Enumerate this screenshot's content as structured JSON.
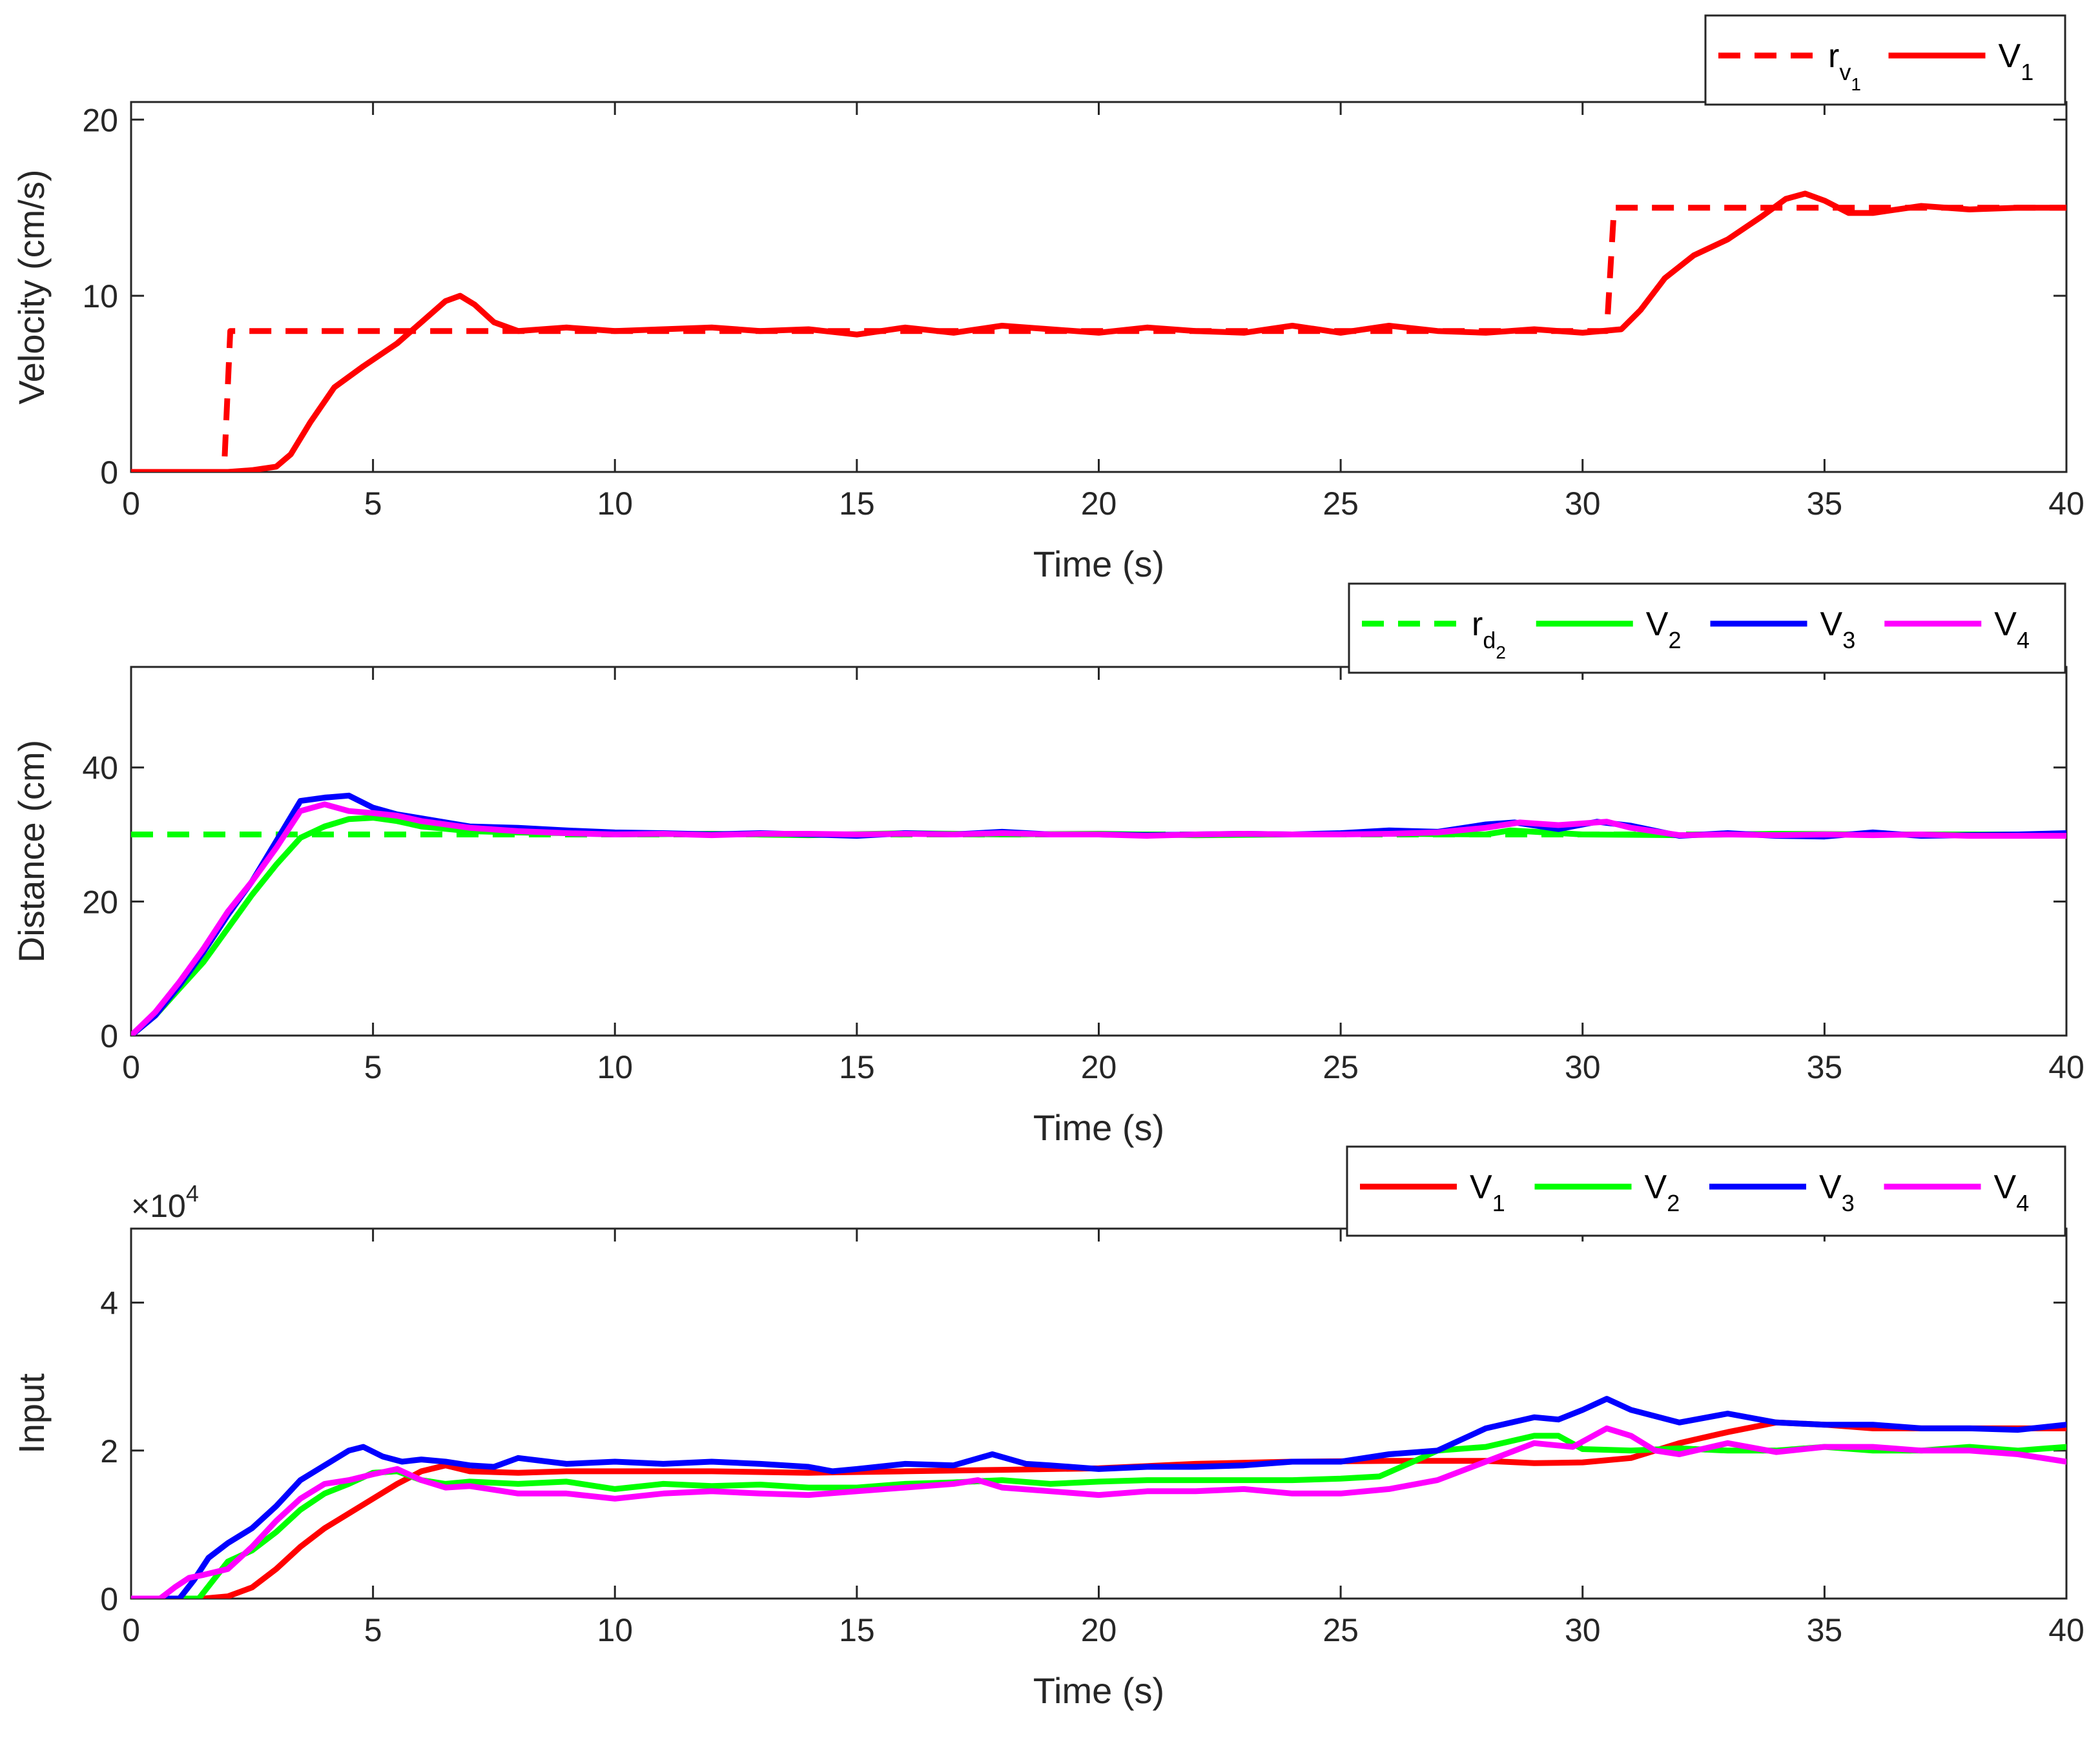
{
  "chart_data": [
    {
      "type": "line",
      "xlabel": "Time (s)",
      "ylabel": "Velocity (cm/s)",
      "xlim": [
        0,
        40
      ],
      "ylim": [
        0,
        21
      ],
      "xticks": [
        0,
        5,
        10,
        15,
        20,
        25,
        30,
        35,
        40
      ],
      "xtick_labels": [
        "0",
        "5",
        "10",
        "15",
        "20",
        "25",
        "30",
        "35",
        "40"
      ],
      "yticks": [
        0,
        10,
        20
      ],
      "ytick_labels": [
        "0",
        "10",
        "20"
      ],
      "legend_position": "top-right",
      "series": [
        {
          "name": "r_{v_1}",
          "label_main": "r",
          "label_sub": "v",
          "label_subsub": "1",
          "color": "#ff0000",
          "style": "dashed",
          "x": [
            0,
            1.92,
            2.05,
            30.5,
            30.65,
            40
          ],
          "y": [
            0,
            0,
            8,
            8,
            15,
            15
          ]
        },
        {
          "name": "V_1",
          "label_main": "V",
          "label_sub": "1",
          "color": "#ff0000",
          "style": "solid",
          "x": [
            0,
            2.0,
            2.5,
            3.0,
            3.3,
            3.7,
            4.2,
            4.8,
            5.5,
            6.0,
            6.5,
            6.8,
            7.1,
            7.5,
            8.0,
            9,
            10,
            11,
            12,
            13,
            14,
            15,
            16,
            17,
            18,
            19,
            20,
            21,
            22,
            23,
            24,
            25,
            26,
            27,
            28,
            29,
            30,
            30.8,
            31.2,
            31.7,
            32.3,
            33.0,
            33.7,
            34.2,
            34.6,
            35.0,
            35.5,
            36,
            37,
            38,
            39,
            40
          ],
          "y": [
            0,
            0,
            0.1,
            0.3,
            1.0,
            2.8,
            4.8,
            6.0,
            7.3,
            8.5,
            9.7,
            10.0,
            9.5,
            8.5,
            8.0,
            8.2,
            8.0,
            8.1,
            8.2,
            8.0,
            8.1,
            7.8,
            8.2,
            7.9,
            8.3,
            8.1,
            7.9,
            8.2,
            8.0,
            7.9,
            8.3,
            7.9,
            8.3,
            8.0,
            7.9,
            8.1,
            7.9,
            8.1,
            9.2,
            11.0,
            12.3,
            13.2,
            14.5,
            15.5,
            15.8,
            15.4,
            14.7,
            14.7,
            15.1,
            14.9,
            15.0,
            15.0
          ]
        }
      ]
    },
    {
      "type": "line",
      "xlabel": "Time (s)",
      "ylabel": "Distance (cm)",
      "xlim": [
        0,
        40
      ],
      "ylim": [
        0,
        55
      ],
      "xticks": [
        0,
        5,
        10,
        15,
        20,
        25,
        30,
        35,
        40
      ],
      "xtick_labels": [
        "0",
        "5",
        "10",
        "15",
        "20",
        "25",
        "30",
        "35",
        "40"
      ],
      "yticks": [
        0,
        20,
        40
      ],
      "ytick_labels": [
        "0",
        "20",
        "40"
      ],
      "legend_position": "top-right",
      "series": [
        {
          "name": "r_{d_2}",
          "label_main": "r",
          "label_sub": "d",
          "label_subsub": "2",
          "color": "#00ff00",
          "style": "dashed",
          "x": [
            0,
            40
          ],
          "y": [
            30,
            30
          ]
        },
        {
          "name": "V_2",
          "label_main": "V",
          "label_sub": "2",
          "color": "#00ff00",
          "style": "solid",
          "x": [
            0,
            0.5,
            1,
            1.5,
            2,
            2.5,
            3,
            3.5,
            4,
            4.5,
            5,
            5.5,
            6,
            7,
            8,
            9,
            10,
            12,
            14,
            16,
            18,
            20,
            22,
            24,
            26,
            28,
            28.5,
            30,
            32,
            34,
            36,
            38,
            40
          ],
          "y": [
            0,
            3,
            7,
            11,
            16,
            21,
            25.5,
            29.5,
            31.2,
            32.3,
            32.5,
            32.0,
            31.2,
            30.5,
            30.3,
            30.2,
            30.0,
            30.1,
            29.9,
            30.2,
            30.0,
            30.1,
            29.9,
            30.0,
            30.1,
            30.0,
            30.6,
            30.0,
            29.9,
            30.1,
            30.0,
            30.0,
            30.0
          ]
        },
        {
          "name": "V_3",
          "label_main": "V",
          "label_sub": "3",
          "color": "#0000ff",
          "style": "solid",
          "x": [
            0,
            0.5,
            1,
            1.5,
            2,
            2.5,
            3,
            3.5,
            4,
            4.5,
            5,
            5.5,
            6,
            7,
            8,
            9,
            10,
            11,
            12,
            13,
            14,
            15,
            16,
            17,
            18,
            19,
            20,
            21,
            22,
            23,
            24,
            25,
            26,
            27,
            28,
            28.6,
            29.5,
            30.3,
            31,
            32,
            33,
            34,
            35,
            36,
            37,
            38,
            39,
            40
          ],
          "y": [
            0,
            3,
            7.5,
            12.5,
            18,
            23,
            29,
            35,
            35.5,
            35.8,
            34.0,
            33.0,
            32.4,
            31.2,
            31.0,
            30.6,
            30.3,
            30.2,
            30.0,
            30.2,
            30.0,
            29.8,
            30.2,
            30.0,
            30.4,
            30.0,
            30.0,
            29.9,
            30.0,
            30.1,
            30.0,
            30.2,
            30.6,
            30.4,
            31.5,
            31.8,
            30.8,
            31.9,
            31.3,
            29.8,
            30.2,
            29.8,
            29.7,
            30.3,
            29.8,
            29.9,
            30.0,
            30.2
          ]
        },
        {
          "name": "V_4",
          "label_main": "V",
          "label_sub": "4",
          "color": "#ff00ff",
          "style": "solid",
          "x": [
            0,
            0.5,
            1,
            1.5,
            2,
            2.5,
            3,
            3.5,
            4,
            4.5,
            5,
            5.5,
            6,
            7,
            8,
            9,
            10,
            11,
            12,
            13,
            14,
            15,
            16,
            17,
            18,
            19,
            20,
            21,
            22,
            23,
            24,
            25,
            26,
            27,
            28,
            28.7,
            29.5,
            30.5,
            31,
            32,
            33,
            34,
            35,
            36,
            37,
            38,
            39,
            40
          ],
          "y": [
            0,
            3.5,
            8,
            13,
            18.5,
            23,
            28,
            33.5,
            34.5,
            33.5,
            33.2,
            32.8,
            32.0,
            31.0,
            30.5,
            30.2,
            30.0,
            30.1,
            29.9,
            30.1,
            30.1,
            30.0,
            30.1,
            30.0,
            30.2,
            30.0,
            30.0,
            29.8,
            30.0,
            30.1,
            30.0,
            30.0,
            30.1,
            30.3,
            31.0,
            31.8,
            31.4,
            31.9,
            31.0,
            29.9,
            30.0,
            29.9,
            30.0,
            29.9,
            30.0,
            29.8,
            29.8,
            29.8
          ]
        }
      ]
    },
    {
      "type": "line",
      "xlabel": "Time (s)",
      "ylabel": "Input",
      "exponent_label": "×10",
      "exponent_power": "4",
      "xlim": [
        0,
        40
      ],
      "ylim": [
        0,
        5
      ],
      "xticks": [
        0,
        5,
        10,
        15,
        20,
        25,
        30,
        35,
        40
      ],
      "xtick_labels": [
        "0",
        "5",
        "10",
        "15",
        "20",
        "25",
        "30",
        "35",
        "40"
      ],
      "yticks": [
        0,
        2,
        4
      ],
      "ytick_labels": [
        "0",
        "2",
        "4"
      ],
      "legend_position": "top-right",
      "series": [
        {
          "name": "V_1",
          "label_main": "V",
          "label_sub": "1",
          "color": "#ff0000",
          "style": "solid",
          "x": [
            0,
            1.5,
            2,
            2.5,
            3,
            3.5,
            4,
            4.5,
            5,
            5.5,
            6,
            6.5,
            7,
            8,
            9,
            10,
            12,
            14,
            16,
            18,
            20,
            22,
            24,
            26,
            28,
            29,
            30,
            31,
            32,
            33,
            34,
            35,
            36,
            38,
            40
          ],
          "y": [
            0,
            0,
            0.03,
            0.15,
            0.4,
            0.7,
            0.95,
            1.15,
            1.35,
            1.55,
            1.72,
            1.8,
            1.72,
            1.7,
            1.72,
            1.72,
            1.72,
            1.7,
            1.72,
            1.74,
            1.76,
            1.82,
            1.85,
            1.86,
            1.86,
            1.83,
            1.84,
            1.9,
            2.1,
            2.25,
            2.38,
            2.35,
            2.3,
            2.3,
            2.3
          ]
        },
        {
          "name": "V_2",
          "label_main": "V",
          "label_sub": "2",
          "color": "#00ff00",
          "style": "solid",
          "x": [
            0,
            1.4,
            1.7,
            2.0,
            2.5,
            3.0,
            3.5,
            4.0,
            4.5,
            5,
            5.5,
            6,
            6.5,
            7,
            8,
            9,
            10,
            11,
            12,
            13,
            14,
            15,
            16,
            17,
            18,
            19,
            20,
            21,
            22,
            23,
            24,
            25,
            25.8,
            26.5,
            27,
            28,
            29,
            29.5,
            30,
            31,
            32,
            33,
            34,
            35,
            36,
            37,
            38,
            39,
            40
          ],
          "y": [
            0,
            0,
            0.25,
            0.5,
            0.65,
            0.9,
            1.2,
            1.42,
            1.55,
            1.7,
            1.72,
            1.6,
            1.55,
            1.58,
            1.55,
            1.58,
            1.48,
            1.55,
            1.52,
            1.54,
            1.5,
            1.5,
            1.55,
            1.57,
            1.6,
            1.55,
            1.58,
            1.6,
            1.6,
            1.6,
            1.6,
            1.62,
            1.65,
            1.85,
            2.0,
            2.05,
            2.2,
            2.2,
            2.02,
            2.0,
            2.03,
            2.0,
            2.0,
            2.05,
            2.0,
            2.0,
            2.05,
            2.0,
            2.05
          ]
        },
        {
          "name": "V_3",
          "label_main": "V",
          "label_sub": "3",
          "color": "#0000ff",
          "style": "solid",
          "x": [
            0,
            1.0,
            1.3,
            1.6,
            2.0,
            2.5,
            3.0,
            3.5,
            4.0,
            4.5,
            4.8,
            5.2,
            5.6,
            6,
            6.5,
            7,
            7.5,
            8,
            9,
            10,
            11,
            12,
            13,
            14,
            14.5,
            15,
            16,
            17,
            17.8,
            18.5,
            19,
            20,
            21,
            22,
            23,
            24,
            25,
            26,
            27,
            28,
            29,
            29.5,
            30,
            30.5,
            31,
            32,
            33,
            34,
            35,
            36,
            37,
            38,
            39,
            40
          ],
          "y": [
            0,
            0,
            0.25,
            0.55,
            0.75,
            0.95,
            1.25,
            1.6,
            1.8,
            2.0,
            2.05,
            1.92,
            1.85,
            1.88,
            1.85,
            1.8,
            1.78,
            1.9,
            1.82,
            1.85,
            1.82,
            1.85,
            1.82,
            1.78,
            1.72,
            1.75,
            1.82,
            1.8,
            1.95,
            1.82,
            1.8,
            1.75,
            1.78,
            1.78,
            1.8,
            1.85,
            1.85,
            1.95,
            2.0,
            2.3,
            2.45,
            2.42,
            2.55,
            2.7,
            2.55,
            2.38,
            2.5,
            2.38,
            2.35,
            2.35,
            2.3,
            2.3,
            2.28,
            2.35
          ]
        },
        {
          "name": "V_4",
          "label_main": "V",
          "label_sub": "4",
          "color": "#ff00ff",
          "style": "solid",
          "x": [
            0,
            0.6,
            0.9,
            1.2,
            1.5,
            2.0,
            2.5,
            3.0,
            3.5,
            4.0,
            4.5,
            5.0,
            5.5,
            6.0,
            6.5,
            7,
            8,
            9,
            10,
            11,
            12,
            13,
            14,
            15,
            16,
            17,
            17.5,
            18,
            19,
            20,
            21,
            22,
            23,
            24,
            25,
            26,
            27,
            28,
            29,
            29.8,
            30.5,
            31,
            31.5,
            32,
            33,
            34,
            35,
            36,
            37,
            38,
            39,
            40
          ],
          "y": [
            0,
            0,
            0.15,
            0.28,
            0.32,
            0.4,
            0.7,
            1.05,
            1.35,
            1.55,
            1.6,
            1.68,
            1.75,
            1.6,
            1.5,
            1.52,
            1.42,
            1.42,
            1.35,
            1.42,
            1.45,
            1.42,
            1.4,
            1.45,
            1.5,
            1.55,
            1.6,
            1.5,
            1.45,
            1.4,
            1.45,
            1.45,
            1.48,
            1.42,
            1.42,
            1.48,
            1.6,
            1.85,
            2.1,
            2.05,
            2.3,
            2.2,
            2.0,
            1.95,
            2.1,
            1.98,
            2.05,
            2.05,
            2.0,
            2.0,
            1.95,
            1.85
          ]
        }
      ]
    }
  ]
}
